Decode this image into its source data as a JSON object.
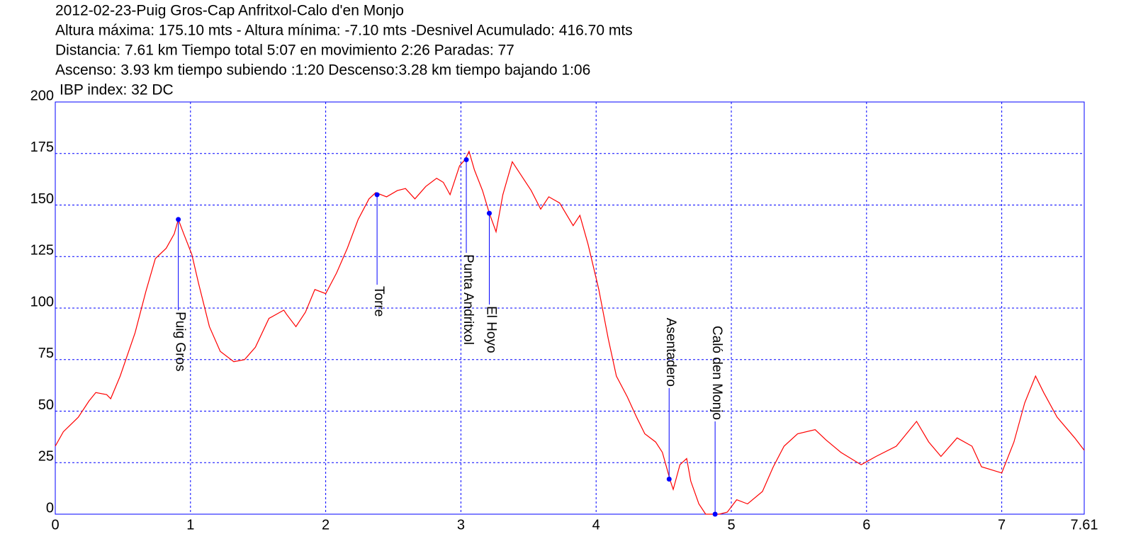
{
  "chart_data": {
    "type": "line",
    "title": "2012-02-23-Puig Gros-Cap Anfritxol-Calo d'en Monjo",
    "subtitle": [
      "Altura máxima: 175.10 mts - Altura mínima: -7.10 mts -Desnivel Acumulado: 416.70 mts",
      "Distancia: 7.61 km  Tiempo total 5:07  en movimiento 2:26 Paradas: 77",
      "Ascenso: 3.93 km  tiempo subiendo :1:20  Descenso:3.28 km tiempo bajando 1:06",
      "IBP index: 32 DC"
    ],
    "xlim": [
      0,
      7.61
    ],
    "ylim": [
      0,
      200
    ],
    "xticks": [
      0,
      1,
      2,
      3,
      4,
      5,
      6,
      7,
      7.61
    ],
    "yticks": [
      0,
      25,
      50,
      75,
      100,
      125,
      150,
      175,
      200
    ],
    "grid": true,
    "axis_color": "#0000ff",
    "series": [
      {
        "color": "#ff0000",
        "x": [
          0,
          0.06,
          0.17,
          0.25,
          0.3,
          0.38,
          0.41,
          0.48,
          0.59,
          0.67,
          0.74,
          0.82,
          0.88,
          0.91,
          0.95,
          1.01,
          1.06,
          1.14,
          1.22,
          1.32,
          1.4,
          1.48,
          1.58,
          1.69,
          1.71,
          1.78,
          1.85,
          1.92,
          2.0,
          2.08,
          2.16,
          2.24,
          2.32,
          2.37,
          2.45,
          2.53,
          2.59,
          2.66,
          2.74,
          2.82,
          2.87,
          2.92,
          2.99,
          3.03,
          3.06,
          3.1,
          3.16,
          3.21,
          3.26,
          3.31,
          3.38,
          3.45,
          3.52,
          3.59,
          3.65,
          3.73,
          3.83,
          3.88,
          3.94,
          4.02,
          4.09,
          4.15,
          4.23,
          4.3,
          4.36,
          4.44,
          4.49,
          4.55,
          4.57,
          4.62,
          4.67,
          4.7,
          4.76,
          4.81,
          4.86,
          4.91,
          4.97,
          5.04,
          5.12,
          5.23,
          5.31,
          5.39,
          5.49,
          5.62,
          5.7,
          5.81,
          5.96,
          6.07,
          6.22,
          6.37,
          6.46,
          6.55,
          6.67,
          6.78,
          6.85,
          7.0,
          7.09,
          7.17,
          7.25,
          7.31,
          7.41,
          7.54,
          7.61
        ],
        "values": [
          33,
          40,
          47,
          55,
          59,
          58,
          56,
          67,
          88,
          108,
          124,
          129,
          136,
          143,
          136,
          126,
          112,
          91,
          79,
          74,
          75,
          81,
          95,
          99,
          97,
          91,
          98,
          109,
          107,
          117,
          129,
          143,
          153,
          156,
          154,
          157,
          158,
          153,
          159,
          163,
          161,
          155,
          169,
          172,
          176,
          167,
          157,
          146,
          137,
          155,
          171,
          164,
          157,
          148,
          154,
          151,
          140,
          145,
          131,
          109,
          85,
          67,
          57,
          47,
          39,
          35,
          30,
          16,
          12,
          24,
          27,
          16,
          5,
          0,
          0,
          0,
          1,
          7,
          5,
          11,
          23,
          33,
          39,
          41,
          36,
          30,
          24,
          28,
          33,
          45,
          35,
          28,
          37,
          33,
          23,
          20,
          35,
          54,
          67,
          59,
          47,
          37,
          31
        ]
      }
    ],
    "waypoints": [
      {
        "label": "Puig Gros",
        "x": 0.91,
        "y": 143
      },
      {
        "label": "Torre",
        "x": 2.38,
        "y": 155
      },
      {
        "label": "Punta Andritxol",
        "x": 3.04,
        "y": 172
      },
      {
        "label": "El Hoyo",
        "x": 3.21,
        "y": 146
      },
      {
        "label": "Asentadero",
        "x": 4.54,
        "y": 17
      },
      {
        "label": "Caló den Monjo",
        "x": 4.88,
        "y": 0
      }
    ],
    "waypoint_color": "#0000ff"
  }
}
